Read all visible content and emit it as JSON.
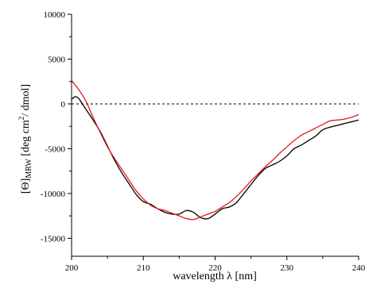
{
  "chart_data": {
    "type": "line",
    "title": "",
    "xlabel": "wavelength λ [nm]",
    "ylabel": {
      "prefix": "[Θ]",
      "subscript": "MRW",
      "unit_before": " [deg cm",
      "superscript": "2",
      "unit_after": "/ dmol]"
    },
    "xlim": [
      200,
      240
    ],
    "ylim": [
      -17000,
      10000
    ],
    "xticks": [
      200,
      210,
      220,
      230,
      240
    ],
    "yticks": [
      10000,
      5000,
      0,
      -5000,
      -10000,
      -15000
    ],
    "grid": false,
    "legend": "none",
    "reference_line": {
      "y": 0,
      "style": "dashed",
      "color": "#000000"
    },
    "series": [
      {
        "color": "#000000",
        "x": [
          200,
          200.5,
          201,
          201.5,
          202,
          203,
          204,
          205,
          206,
          207,
          208,
          209,
          210,
          211,
          212,
          213,
          214,
          215,
          216,
          217,
          218,
          219,
          220,
          221,
          222,
          223,
          224,
          225,
          226,
          227,
          228,
          229,
          230,
          231,
          232,
          233,
          234,
          235,
          236,
          237,
          238,
          239,
          240
        ],
        "y": [
          500,
          800,
          600,
          0,
          -600,
          -1800,
          -3100,
          -4700,
          -6300,
          -7700,
          -8900,
          -10100,
          -10900,
          -11200,
          -11700,
          -12100,
          -12300,
          -12300,
          -11900,
          -12100,
          -12700,
          -12800,
          -12300,
          -11700,
          -11500,
          -11000,
          -10000,
          -9000,
          -8000,
          -7200,
          -6800,
          -6400,
          -5800,
          -5000,
          -4600,
          -4100,
          -3600,
          -2900,
          -2600,
          -2400,
          -2200,
          -2000,
          -1800
        ]
      },
      {
        "color": "#e31a1c",
        "x": [
          200,
          201,
          202,
          203,
          204,
          205,
          206,
          207,
          208,
          209,
          210,
          211,
          212,
          213,
          214,
          215,
          216,
          217,
          218,
          219,
          220,
          221,
          222,
          223,
          224,
          225,
          226,
          227,
          228,
          229,
          230,
          231,
          232,
          233,
          234,
          235,
          236,
          237,
          238,
          239,
          240
        ],
        "y": [
          2600,
          1600,
          300,
          -1500,
          -3200,
          -4800,
          -6100,
          -7300,
          -8500,
          -9700,
          -10600,
          -11300,
          -11700,
          -11900,
          -12200,
          -12500,
          -12800,
          -12900,
          -12600,
          -12300,
          -12000,
          -11500,
          -11000,
          -10300,
          -9500,
          -8600,
          -7800,
          -7000,
          -6300,
          -5500,
          -4800,
          -4100,
          -3500,
          -3100,
          -2700,
          -2300,
          -1900,
          -1800,
          -1700,
          -1500,
          -1200
        ]
      }
    ]
  }
}
